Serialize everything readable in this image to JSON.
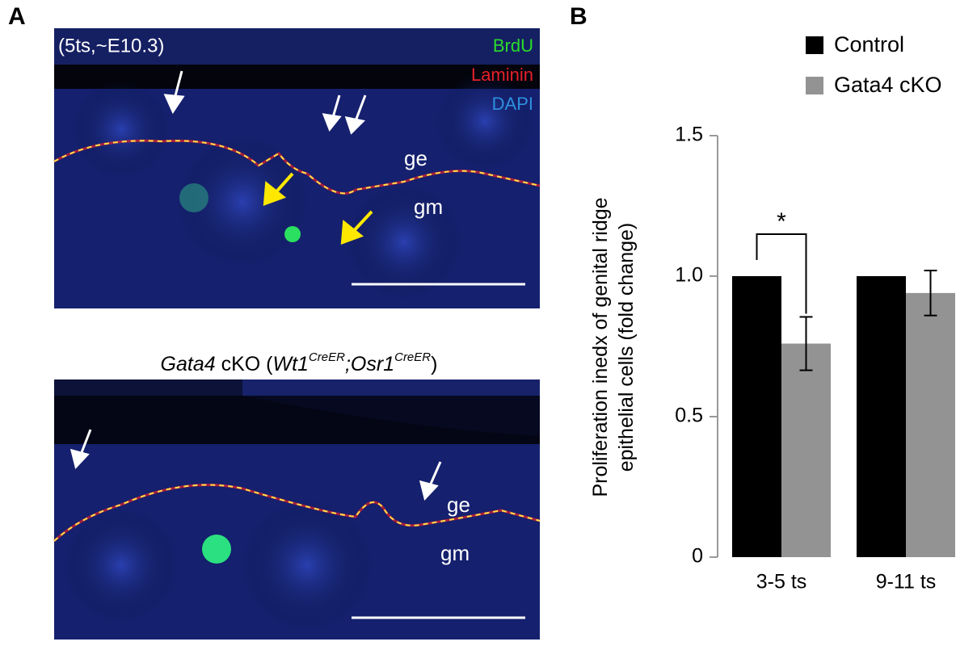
{
  "panel_a": {
    "label": "A",
    "top_image": {
      "stage": "(5ts,~E10.3)",
      "stains": [
        "BrdU",
        "Laminin",
        "DAPI"
      ],
      "stain_colors": [
        "#2bdc2b",
        "#e8202a",
        "#2f8fe0"
      ],
      "ge": "ge",
      "gm": "gm"
    },
    "bottom_image": {
      "caption": [
        {
          "text": "Gata4",
          "italic": true,
          "sup": false
        },
        {
          "text": " cKO (",
          "italic": false,
          "sup": false
        },
        {
          "text": "Wt1",
          "italic": true,
          "sup": false
        },
        {
          "text": "CreER",
          "italic": true,
          "sup": true
        },
        {
          "text": ";",
          "italic": true,
          "sup": false
        },
        {
          "text": "Osr1",
          "italic": true,
          "sup": false
        },
        {
          "text": "CreER",
          "italic": true,
          "sup": true
        },
        {
          "text": ")",
          "italic": false,
          "sup": false
        }
      ],
      "ge": "ge",
      "gm": "gm"
    }
  },
  "chart_data": {
    "type": "bar",
    "panel_label": "B",
    "y_label": [
      "Proliferation inedx of genital ridge",
      "epithelial cells (fold change)"
    ],
    "categories": [
      "3-5 ts",
      "9-11 ts"
    ],
    "series": [
      {
        "name": "Control",
        "color": "#000000",
        "values": [
          1.0,
          1.0
        ]
      },
      {
        "name": "Gata4 cKO",
        "color": "#939393",
        "values": [
          0.76,
          0.94
        ],
        "errors": [
          0.095,
          0.08
        ]
      }
    ],
    "ylim": [
      0,
      1.5
    ],
    "yticks": [
      0,
      0.5,
      {
        "value": 1,
        "label": "1.0"
      },
      1.5
    ],
    "significance": "*",
    "legend": "top-right"
  }
}
